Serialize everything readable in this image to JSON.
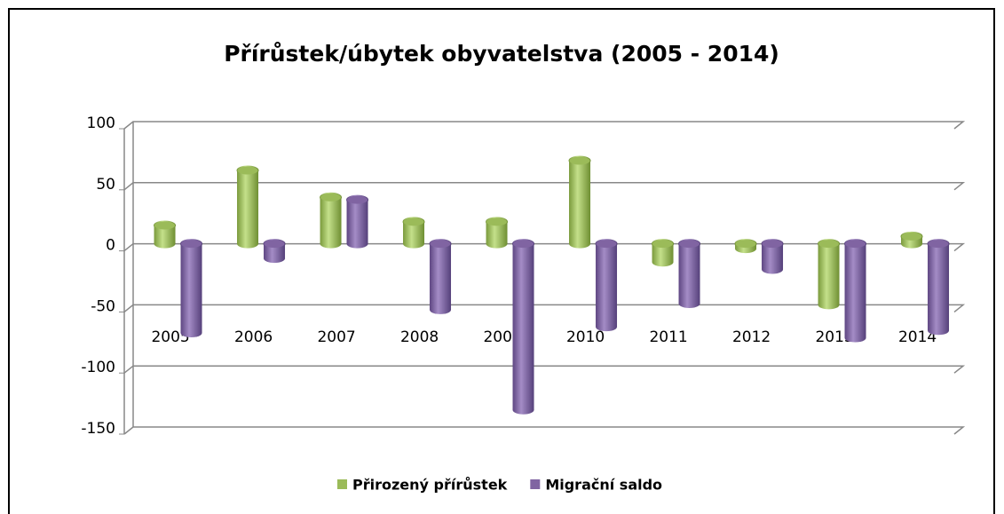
{
  "chart_data": {
    "type": "bar",
    "title": "Přírůstek/úbytek obyvatelstva (2005 - 2014)",
    "categories": [
      "2005",
      "2006",
      "2007",
      "2008",
      "2009",
      "2010",
      "2011",
      "2012",
      "2013",
      "2014"
    ],
    "series": [
      {
        "name": "Přirozený přírůstek",
        "color": "#9bbb59",
        "values": [
          15,
          60,
          38,
          18,
          18,
          68,
          -15,
          -4,
          -50,
          6
        ]
      },
      {
        "name": "Migrační saldo",
        "color": "#8064a2",
        "values": [
          -73,
          -12,
          36,
          -54,
          -136,
          -68,
          -49,
          -21,
          -77,
          -71
        ]
      }
    ],
    "ylim": [
      -150,
      100
    ],
    "yticks": [
      -150,
      -100,
      -50,
      0,
      50,
      100
    ],
    "grid": true,
    "legend": "bottom"
  }
}
